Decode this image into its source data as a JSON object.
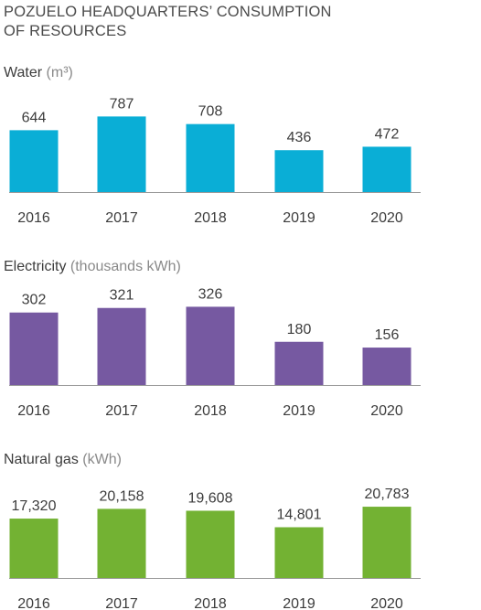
{
  "title": {
    "line1": "POZUELO HEADQUARTERS’ CONSUMPTION",
    "line2": "OF RESOURCES"
  },
  "chart_data": [
    {
      "type": "bar",
      "label": "Water",
      "unit": "(m³)",
      "color": "#0aaed6",
      "categories": [
        "2016",
        "2017",
        "2018",
        "2019",
        "2020"
      ],
      "values": [
        644,
        787,
        708,
        436,
        472
      ],
      "value_labels": [
        "644",
        "787",
        "708",
        "436",
        "472"
      ],
      "ylim": [
        0,
        1000
      ]
    },
    {
      "type": "bar",
      "label": "Electricity",
      "unit": "(thousands kWh)",
      "color": "#7659a1",
      "categories": [
        "2016",
        "2017",
        "2018",
        "2019",
        "2020"
      ],
      "values": [
        302,
        321,
        326,
        180,
        156
      ],
      "value_labels": [
        "302",
        "321",
        "326",
        "180",
        "156"
      ],
      "ylim": [
        0,
        400
      ]
    },
    {
      "type": "bar",
      "label": "Natural gas",
      "unit": "(kWh)",
      "color": "#73b233",
      "categories": [
        "2016",
        "2017",
        "2018",
        "2019",
        "2020"
      ],
      "values": [
        17320,
        20158,
        19608,
        14801,
        20783
      ],
      "value_labels": [
        "17,320",
        "20,158",
        "19,608",
        "14,801",
        "20,783"
      ],
      "ylim": [
        0,
        28000
      ]
    }
  ]
}
